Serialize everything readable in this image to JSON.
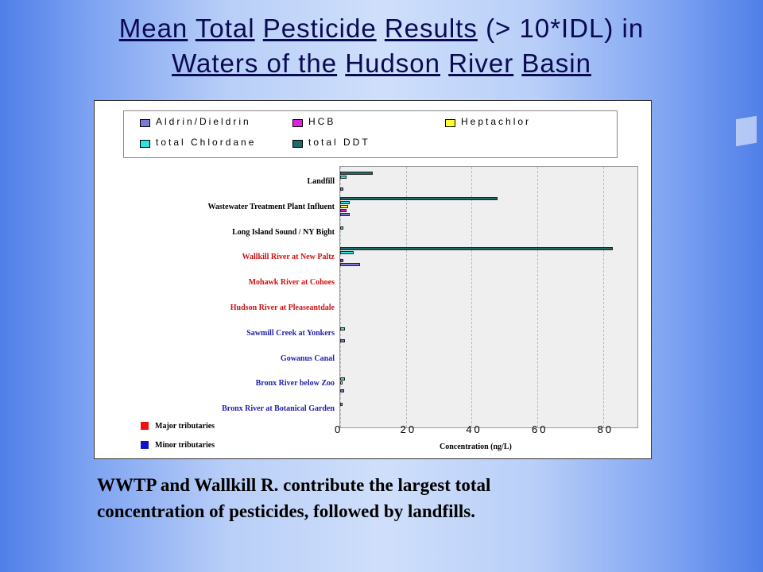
{
  "title": {
    "line1": [
      "Mean",
      "Total",
      "Pesticide",
      "Results",
      "(> 10*IDL) in"
    ],
    "line2": [
      "Waters of the",
      "Hudson",
      "River",
      "Basin"
    ]
  },
  "caption": {
    "line1": "WWTP and Wallkill R. contribute the largest total",
    "line2": "concentration of  pesticides, followed by landfills."
  },
  "chart_data": {
    "type": "bar",
    "orientation": "horizontal",
    "title": "",
    "xlabel": "Concentration (ng/L)",
    "ylabel": "",
    "xlim": [
      0,
      90
    ],
    "xticks": [
      0,
      20,
      40,
      60,
      80
    ],
    "grid": true,
    "legend_placement": "top",
    "categories": [
      "Landfill",
      "Wastewater Treatment Plant Influent",
      "Long Island Sound / NY Bight",
      "Wallkill River at New Paltz",
      "Mohawk River at Cohoes",
      "Hudson River at Pleaseantdale",
      "Sawmill Creek at Yonkers",
      "Gowanus Canal",
      "Bronx River below Zoo",
      "Bronx River at Botanical Garden"
    ],
    "category_types": [
      "other",
      "other",
      "other",
      "major",
      "major",
      "major",
      "minor",
      "minor",
      "minor",
      "minor"
    ],
    "series": [
      {
        "name": "total DDT",
        "color": "#1e6b6b",
        "values": [
          10,
          48,
          0,
          83,
          0,
          0,
          0,
          0,
          0,
          0
        ]
      },
      {
        "name": "total Chlordane",
        "color": "#33e0e0",
        "values": [
          2,
          3,
          1,
          4,
          0,
          0,
          1.5,
          0,
          1.5,
          0.5
        ]
      },
      {
        "name": "Heptachlor",
        "color": "#ffff33",
        "values": [
          0,
          2.5,
          0,
          0,
          0,
          0,
          0,
          0,
          0.8,
          0
        ]
      },
      {
        "name": "HCB",
        "color": "#e022e0",
        "values": [
          0,
          2,
          0,
          1,
          0,
          0,
          0,
          0,
          0,
          0
        ]
      },
      {
        "name": "Aldrin/Dieldrin",
        "color": "#7b7bd6",
        "values": [
          1,
          3,
          0,
          6,
          0,
          0,
          1.5,
          0,
          1.2,
          0
        ]
      }
    ],
    "legend": [
      {
        "label": "Aldrin/Dieldrin",
        "color": "#7b7bd6"
      },
      {
        "label": "HCB",
        "color": "#e022e0"
      },
      {
        "label": "Heptachlor",
        "color": "#ffff33"
      },
      {
        "label": "total Chlordane",
        "color": "#33e0e0"
      },
      {
        "label": "total DDT",
        "color": "#1e6b6b"
      }
    ],
    "tributary_legend": [
      {
        "label": "Major tributaries",
        "color": "#ee1111"
      },
      {
        "label": "Minor tributaries",
        "color": "#1111cc"
      }
    ],
    "label_colors": {
      "other": "#000000",
      "major": "#cc1111",
      "minor": "#2222aa"
    }
  }
}
